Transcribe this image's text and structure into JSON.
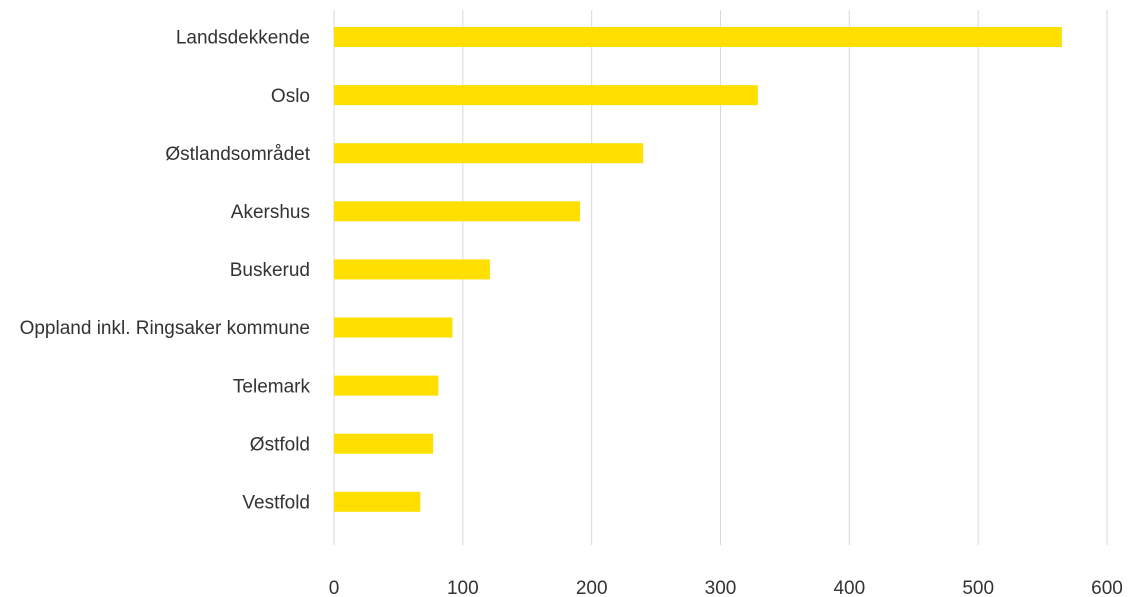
{
  "chart_data": {
    "type": "bar",
    "orientation": "horizontal",
    "categories": [
      "Landsdekkende",
      "Oslo",
      "Østlandsområdet",
      "Akershus",
      "Buskerud",
      "Oppland inkl. Ringsaker kommune",
      "Telemark",
      "Østfold",
      "Vestfold"
    ],
    "values": [
      565,
      329,
      240,
      191,
      121,
      92,
      81,
      77,
      67
    ],
    "xlim": [
      0,
      600
    ],
    "xticks": [
      "0",
      "100",
      "200",
      "300",
      "400",
      "500",
      "600"
    ],
    "title": "",
    "xlabel": "",
    "ylabel": "",
    "grid": "vertical",
    "legend": "none",
    "bar_color": "#FFDF00",
    "grid_color": "#D9D9D9",
    "text_color": "#333333"
  }
}
